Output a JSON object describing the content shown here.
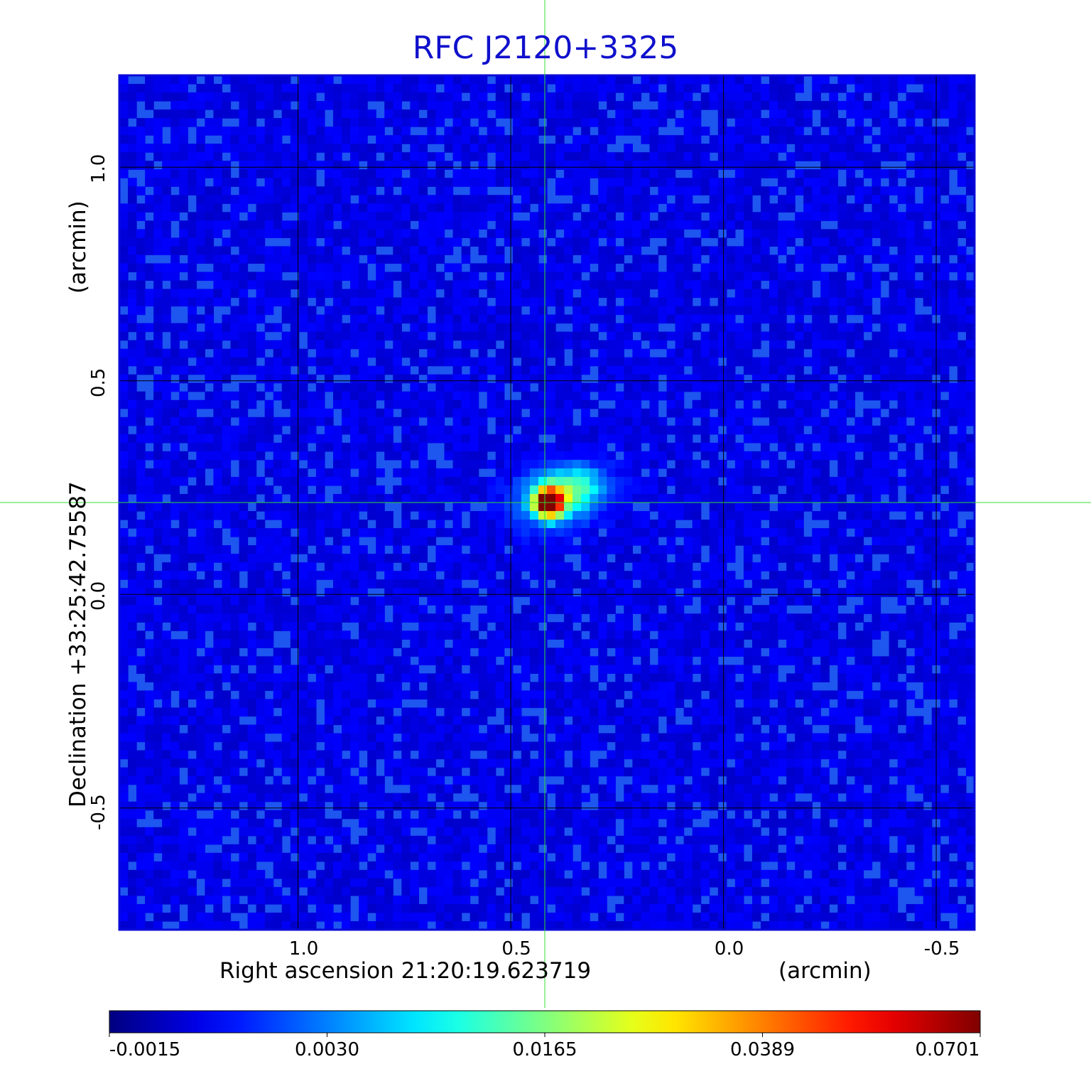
{
  "chart_data": {
    "type": "heatmap",
    "title": "RFC J2120+3325",
    "xlabel": "Right ascension  21:20:19.623719",
    "xunit": "(arcmin)",
    "ylabel": "Declination  +33:25:42.75587",
    "yunit": "(arcmin)",
    "x_ticks": [
      "1.0",
      "0.5",
      "0.0",
      "-0.5"
    ],
    "x_tick_values": [
      1.0,
      0.5,
      0.0,
      -0.5
    ],
    "y_ticks": [
      "1.0",
      "0.5",
      "0.0",
      "-0.5"
    ],
    "y_tick_values": [
      1.0,
      0.5,
      0.0,
      -0.5
    ],
    "xlim": [
      1.42,
      -0.59
    ],
    "ylim": [
      -0.785,
      1.215
    ],
    "grid": true,
    "crosshair": {
      "x": 0.42,
      "y": 0.215
    },
    "source_peak": {
      "x": 0.41,
      "y": 0.215,
      "value": 0.0701
    },
    "colorbar": {
      "colormap": "jet",
      "ticks": [
        "-0.0015",
        "0.0030",
        "0.0165",
        "0.0389",
        "0.0701"
      ],
      "tick_values": [
        -0.0015,
        0.003,
        0.0165,
        0.0389,
        0.0701
      ],
      "range": [
        -0.0015,
        0.0701
      ]
    }
  },
  "colors": {
    "title": "#1010cc",
    "frame": "#0a0ad8",
    "crosshair": "#33dd33",
    "grid": "#000000",
    "background_map": "#1e56f0"
  }
}
